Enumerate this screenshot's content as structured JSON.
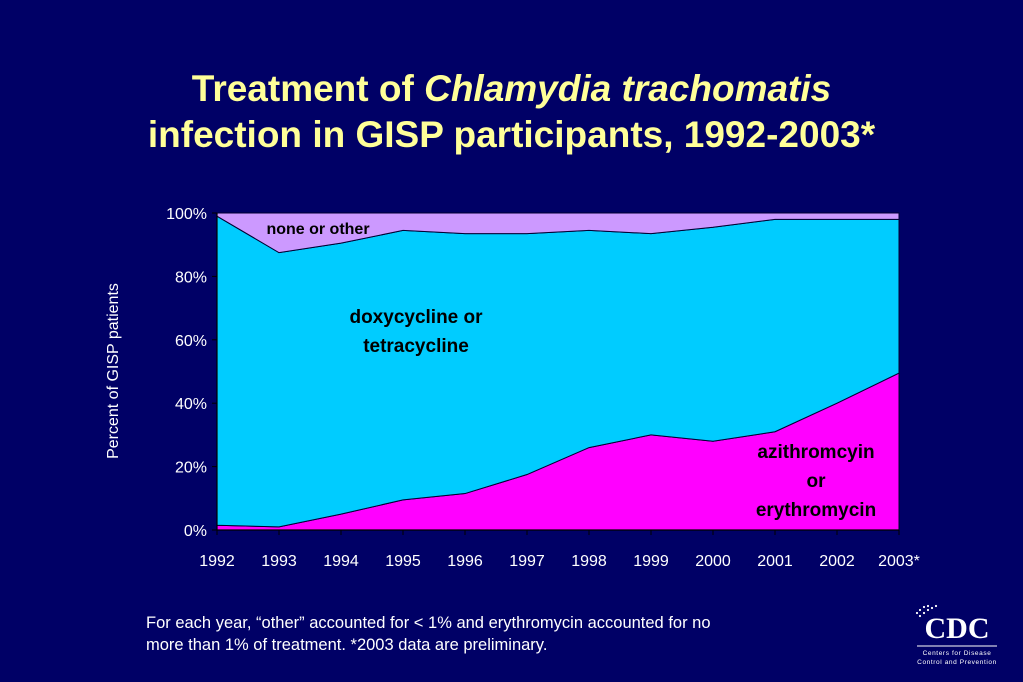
{
  "slide": {
    "title_prefix": "Treatment of ",
    "title_italic": "Chlamydia trachomatis",
    "title_line2": "infection in GISP participants, 1992-2003*",
    "footnote_line1": "For each year, “other” accounted for < 1% and erythromycin accounted for no",
    "footnote_line2": "more than 1% of treatment.  *2003 data are preliminary.",
    "logo": {
      "letters": "CDC",
      "tagline1": "Centers for Disease",
      "tagline2": "Control and Prevention"
    }
  },
  "colors": {
    "background": "#000066",
    "title": "#FFFF99",
    "azithro": "#FF00FF",
    "doxy": "#00CCFF",
    "other": "#CC99FF"
  },
  "chart_data": {
    "type": "area",
    "stacked": true,
    "percent": true,
    "ylabel": "Percent of GISP patients",
    "ylim": [
      0,
      100
    ],
    "yticks": [
      "0%",
      "20%",
      "40%",
      "60%",
      "80%",
      "100%"
    ],
    "categories": [
      "1992",
      "1993",
      "1994",
      "1995",
      "1996",
      "1997",
      "1998",
      "1999",
      "2000",
      "2001",
      "2002",
      "2003*"
    ],
    "series": [
      {
        "name": "azithromcyin or erythromycin",
        "label_lines": [
          "azithromcyin",
          "or",
          "erythromycin"
        ],
        "values": [
          1.5,
          1,
          5,
          9.5,
          11.5,
          17.5,
          26,
          30,
          28,
          31,
          40,
          49.5
        ]
      },
      {
        "name": "doxycycline or tetracycline",
        "label_lines": [
          "doxycycline or",
          "tetracycline"
        ],
        "values": [
          97.5,
          86.5,
          85.5,
          85,
          82,
          76,
          68.5,
          63.5,
          67.5,
          67,
          58,
          48.5
        ]
      },
      {
        "name": "none or other",
        "label_lines": [
          "none or other"
        ],
        "values": [
          1,
          12.5,
          9.5,
          5.5,
          6.5,
          6.5,
          5.5,
          6.5,
          4.5,
          2,
          2,
          2
        ]
      }
    ]
  }
}
